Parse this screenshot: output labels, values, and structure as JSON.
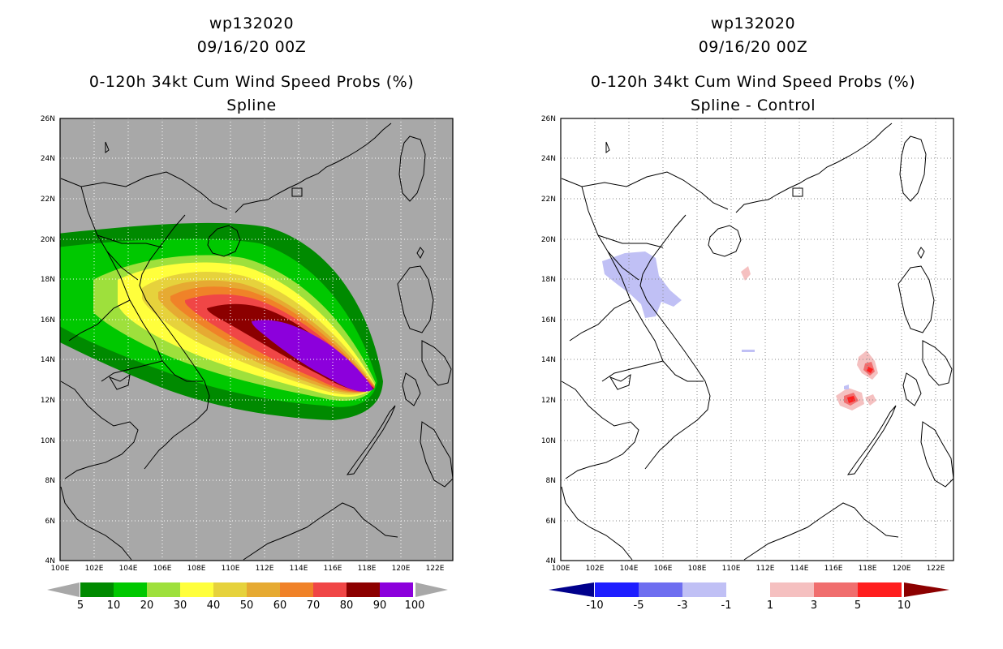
{
  "panels": [
    {
      "line1": "wp132020",
      "line2": "09/16/20 00Z",
      "line3": "0-120h 34kt Cum Wind Speed Probs (%)",
      "line4": "Spline",
      "legend": {
        "labels": [
          "5",
          "10",
          "20",
          "30",
          "40",
          "50",
          "60",
          "70",
          "80",
          "90",
          "100"
        ],
        "colors": [
          "#008a00",
          "#00c800",
          "#9ee03c",
          "#ffff3c",
          "#e6d23c",
          "#e6aa32",
          "#f08228",
          "#f04646",
          "#8c0000",
          "#8c00dc"
        ]
      }
    },
    {
      "line1": "wp132020",
      "line2": "09/16/20 00Z",
      "line3": "0-120h 34kt Cum Wind Speed Probs (%)",
      "line4": "Spline - Control",
      "legend": {
        "labels": [
          "-10",
          "-5",
          "-3",
          "-1",
          "1",
          "3",
          "5",
          "10"
        ],
        "colors": [
          "#1e1eff",
          "#6e6ef0",
          "#c0c0f5",
          "#ffffff",
          "#f5c0c0",
          "#f06e6e",
          "#ff1e1e"
        ],
        "end_left": "#00008c",
        "end_right": "#8c0000"
      }
    }
  ],
  "axes": {
    "lon_labels": [
      "100E",
      "102E",
      "104E",
      "106E",
      "108E",
      "110E",
      "112E",
      "114E",
      "116E",
      "118E",
      "120E",
      "122E"
    ],
    "lat_labels": [
      "4N",
      "6N",
      "8N",
      "10N",
      "12N",
      "14N",
      "16N",
      "18N",
      "20N",
      "22N",
      "24N",
      "26N"
    ],
    "lon_range": [
      100,
      123
    ],
    "lat_range": [
      4,
      26
    ]
  },
  "colors": {
    "ocean_left": "#a8a8a8",
    "ocean_right": "#ffffff",
    "coast": "#000000"
  }
}
